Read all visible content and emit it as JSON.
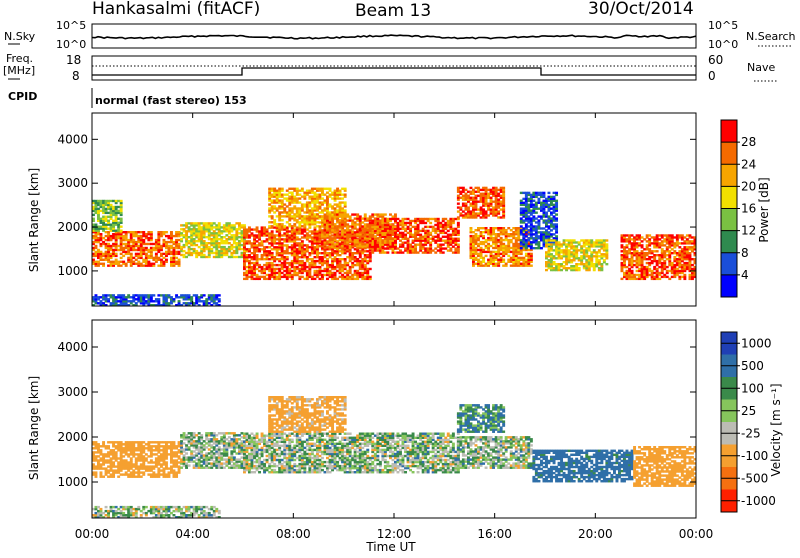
{
  "header": {
    "station": "Hankasalmi (fitACF)",
    "beam": "Beam 13",
    "date": "30/Oct/2014"
  },
  "noise_panel": {
    "left_label": "N.Sky",
    "right_label": "N.Search",
    "left_ticks": [
      "10^5",
      "10^0"
    ],
    "right_ticks": [
      "10^5",
      "10^0"
    ]
  },
  "freq_panel": {
    "left_label_line1": "Freq.",
    "left_label_line2": "[MHz]",
    "right_label": "Nave",
    "left_ticks": [
      "18",
      "8"
    ],
    "right_ticks": [
      "60",
      "0"
    ]
  },
  "cpid": {
    "label": "CPID",
    "value": "normal (fast stereo) 153"
  },
  "power_panel": {
    "ylabel": "Slant Range [km]",
    "yticks": [
      "4000",
      "3000",
      "2000",
      "1000"
    ],
    "colorbar_label": "Power [dB]",
    "colorbar_ticks": [
      "28",
      "24",
      "20",
      "16",
      "12",
      "8",
      "4"
    ],
    "colors": [
      "#0000ff",
      "#1a4ed9",
      "#2f8a4f",
      "#7ac142",
      "#f2e000",
      "#f7a500",
      "#f56a00",
      "#ff0000"
    ]
  },
  "velocity_panel": {
    "ylabel": "Slant Range [km]",
    "yticks": [
      "4000",
      "3000",
      "2000",
      "1000"
    ],
    "colorbar_label": "Velocity [m s⁻¹]",
    "colorbar_ticks": [
      "1000",
      "500",
      "100",
      "25",
      "-25",
      "-100",
      "-500",
      "-1000"
    ],
    "colors": [
      "#1f3fb5",
      "#2f6fa8",
      "#3a8a4a",
      "#86c55c",
      "#bcbcb4",
      "#f5a030",
      "#f57010",
      "#ff2000"
    ]
  },
  "x_axis": {
    "label": "Time UT",
    "ticks": [
      "00:00",
      "04:00",
      "08:00",
      "12:00",
      "16:00",
      "20:00",
      "00:00"
    ]
  },
  "chart_data": [
    {
      "type": "heatmap",
      "title": "Power",
      "xlabel": "Time UT",
      "ylabel": "Slant Range [km]",
      "x_hours_range": [
        0,
        24
      ],
      "ylim": [
        200,
        4600
      ],
      "colorbar": {
        "label": "Power [dB]",
        "range": [
          0,
          32
        ]
      },
      "regions": [
        {
          "t": [
            0,
            3.5
          ],
          "r": [
            1100,
            1900
          ],
          "value": 26
        },
        {
          "t": [
            0,
            1.2
          ],
          "r": [
            1900,
            2600
          ],
          "value": 14
        },
        {
          "t": [
            3.5,
            6
          ],
          "r": [
            1300,
            2100
          ],
          "value": 18
        },
        {
          "t": [
            6,
            11
          ],
          "r": [
            800,
            2000
          ],
          "value": 27
        },
        {
          "t": [
            7,
            10
          ],
          "r": [
            2000,
            2900
          ],
          "value": 22
        },
        {
          "t": [
            9,
            12
          ],
          "r": [
            1500,
            2300
          ],
          "value": 25
        },
        {
          "t": [
            11,
            14.5
          ],
          "r": [
            1400,
            2200
          ],
          "value": 27
        },
        {
          "t": [
            14.5,
            16.3
          ],
          "r": [
            2200,
            2900
          ],
          "value": 27
        },
        {
          "t": [
            15,
            17.5
          ],
          "r": [
            1100,
            2000
          ],
          "value": 24
        },
        {
          "t": [
            17,
            18.5
          ],
          "r": [
            1500,
            2800
          ],
          "value": 6
        },
        {
          "t": [
            18,
            20.5
          ],
          "r": [
            1000,
            1700
          ],
          "value": 18
        },
        {
          "t": [
            21,
            24
          ],
          "r": [
            800,
            1800
          ],
          "value": 27
        },
        {
          "t": [
            0,
            5
          ],
          "r": [
            200,
            450
          ],
          "value": 6
        }
      ]
    },
    {
      "type": "heatmap",
      "title": "Velocity",
      "xlabel": "Time UT",
      "ylabel": "Slant Range [km]",
      "x_hours_range": [
        0,
        24
      ],
      "ylim": [
        200,
        4600
      ],
      "colorbar": {
        "label": "Velocity [m s⁻¹]",
        "range": [
          -1000,
          1000
        ]
      },
      "regions": [
        {
          "t": [
            0,
            3.5
          ],
          "r": [
            1100,
            1900
          ],
          "value": -300
        },
        {
          "t": [
            3.5,
            6
          ],
          "r": [
            1300,
            2100
          ],
          "value": 0
        },
        {
          "t": [
            6,
            14.5
          ],
          "r": [
            1200,
            2100
          ],
          "value": 0
        },
        {
          "t": [
            7,
            10
          ],
          "r": [
            2100,
            2900
          ],
          "value": -200
        },
        {
          "t": [
            14.5,
            17.5
          ],
          "r": [
            1300,
            2000
          ],
          "value": 0
        },
        {
          "t": [
            14.5,
            16.3
          ],
          "r": [
            2100,
            2700
          ],
          "value": 100
        },
        {
          "t": [
            17.5,
            21.5
          ],
          "r": [
            1000,
            1700
          ],
          "value": 200
        },
        {
          "t": [
            21.5,
            24
          ],
          "r": [
            900,
            1800
          ],
          "value": -300
        },
        {
          "t": [
            0,
            5
          ],
          "r": [
            200,
            450
          ],
          "value": 0
        }
      ]
    }
  ]
}
